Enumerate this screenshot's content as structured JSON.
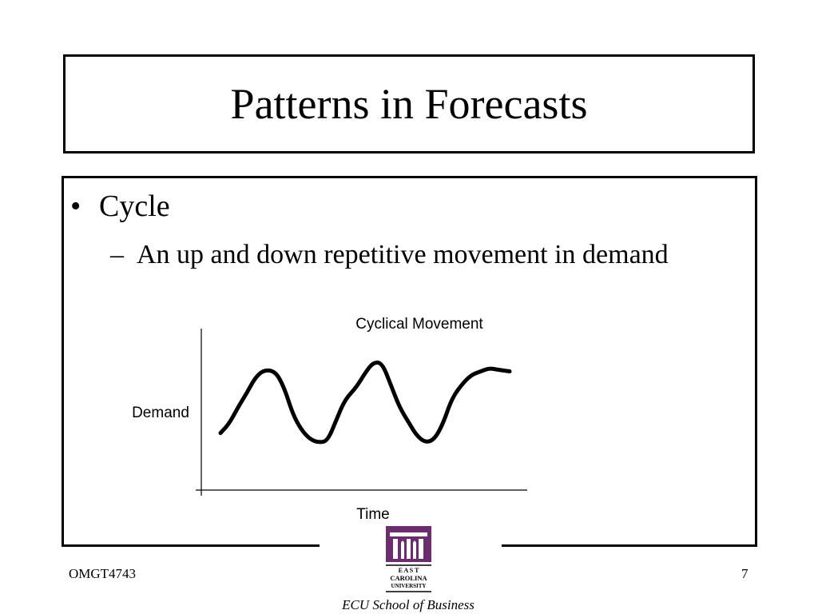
{
  "slide": {
    "title": "Patterns in Forecasts",
    "bullet": "Cycle",
    "sub_bullet": "An up and down repetitive movement in demand",
    "bullet_glyph": "•",
    "dash_glyph": "–"
  },
  "chart_data": {
    "type": "line",
    "title": "Cyclical Movement",
    "xlabel": "Time",
    "ylabel": "Demand",
    "grid": false,
    "legend": "none",
    "series": [
      {
        "values": [
          [
            0.0,
            0.36
          ],
          [
            0.03,
            0.42
          ],
          [
            0.06,
            0.52
          ],
          [
            0.09,
            0.61
          ],
          [
            0.12,
            0.71
          ],
          [
            0.15,
            0.76
          ],
          [
            0.19,
            0.75
          ],
          [
            0.22,
            0.65
          ],
          [
            0.25,
            0.48
          ],
          [
            0.28,
            0.38
          ],
          [
            0.31,
            0.32
          ],
          [
            0.34,
            0.3
          ],
          [
            0.37,
            0.31
          ],
          [
            0.4,
            0.44
          ],
          [
            0.43,
            0.57
          ],
          [
            0.47,
            0.65
          ],
          [
            0.5,
            0.74
          ],
          [
            0.53,
            0.81
          ],
          [
            0.56,
            0.8
          ],
          [
            0.59,
            0.66
          ],
          [
            0.62,
            0.52
          ],
          [
            0.65,
            0.43
          ],
          [
            0.68,
            0.34
          ],
          [
            0.71,
            0.3
          ],
          [
            0.74,
            0.32
          ],
          [
            0.77,
            0.42
          ],
          [
            0.8,
            0.58
          ],
          [
            0.84,
            0.68
          ],
          [
            0.87,
            0.73
          ],
          [
            0.9,
            0.75
          ],
          [
            0.93,
            0.77
          ],
          [
            0.96,
            0.76
          ],
          [
            1.0,
            0.75
          ]
        ]
      }
    ]
  },
  "logo": {
    "line1": "E A S T",
    "line2": "CAROLINA",
    "line3": "UNIVERSITY",
    "school": "ECU School of Business",
    "brand_color": "#6b2d6e"
  },
  "footer": {
    "course": "OMGT4743",
    "page": "7"
  }
}
